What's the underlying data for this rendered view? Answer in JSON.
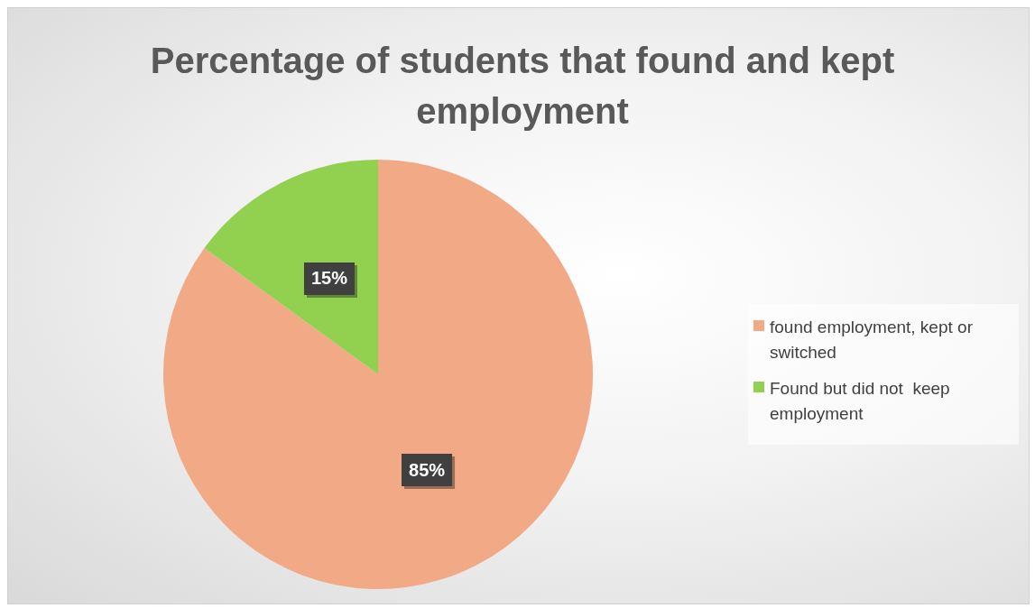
{
  "chart_data": {
    "type": "pie",
    "title": "Percentage of students that found and kept employment",
    "categories": [
      "found employment, kept or switched",
      "Found but did not  keep employment"
    ],
    "values": [
      85,
      15
    ],
    "colors": [
      "#f1a986",
      "#92d050"
    ],
    "value_labels": [
      "85%",
      "15%"
    ],
    "legend": "right"
  }
}
